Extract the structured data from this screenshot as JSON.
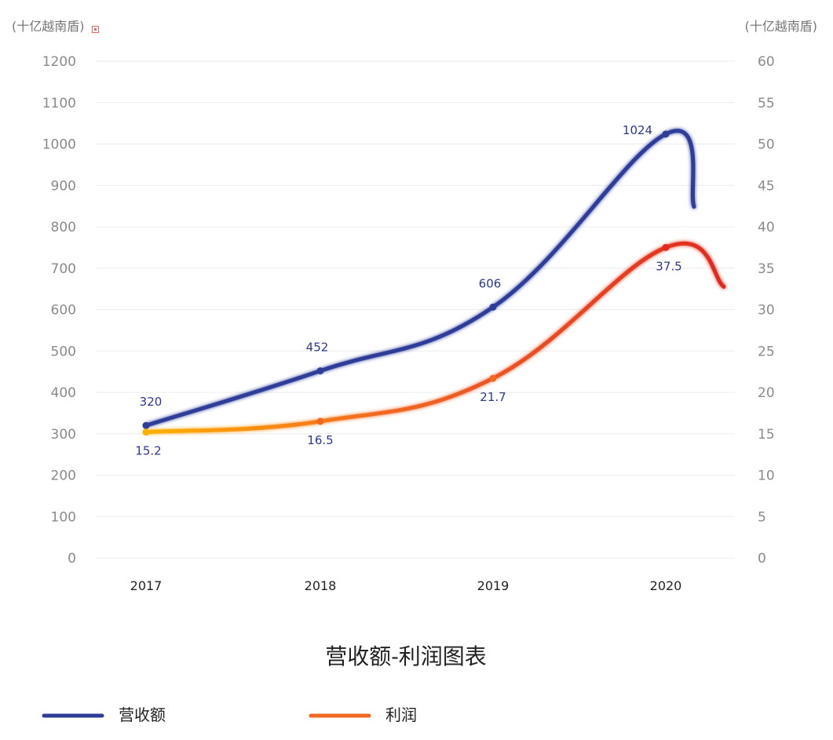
{
  "chart_data": {
    "type": "line",
    "title": "营收额-利润图表",
    "categories": [
      "2017",
      "2018",
      "2019",
      "2020"
    ],
    "y_left": {
      "unit": "(十亿越南盾)",
      "range": [
        0,
        1200
      ],
      "ticks": [
        "0",
        "100",
        "200",
        "300",
        "400",
        "500",
        "600",
        "700",
        "800",
        "900",
        "1000",
        "1100",
        "1200"
      ]
    },
    "y_right": {
      "unit": "(十亿越南盾)",
      "range": [
        0,
        60
      ],
      "ticks": [
        "0",
        "5",
        "10",
        "15",
        "20",
        "25",
        "30",
        "35",
        "40",
        "45",
        "50",
        "55",
        "60"
      ]
    },
    "grid": true,
    "legend_position": "bottom-left",
    "series": [
      {
        "name": "营收额",
        "axis": "left",
        "values": [
          320,
          452,
          606,
          1024
        ],
        "labels": [
          "320",
          "452",
          "606",
          "1024"
        ],
        "color": "#2e3d98"
      },
      {
        "name": "利润",
        "axis": "right",
        "values": [
          15.2,
          16.5,
          21.7,
          37.5
        ],
        "labels": [
          "15.2",
          "16.5",
          "21.7",
          "37.5"
        ],
        "color_start": "#ffb000",
        "color_mid": "#f26a21",
        "color_end": "#e02a1f"
      }
    ],
    "label_color": "#2b3990",
    "grid_color": "#ececec"
  }
}
